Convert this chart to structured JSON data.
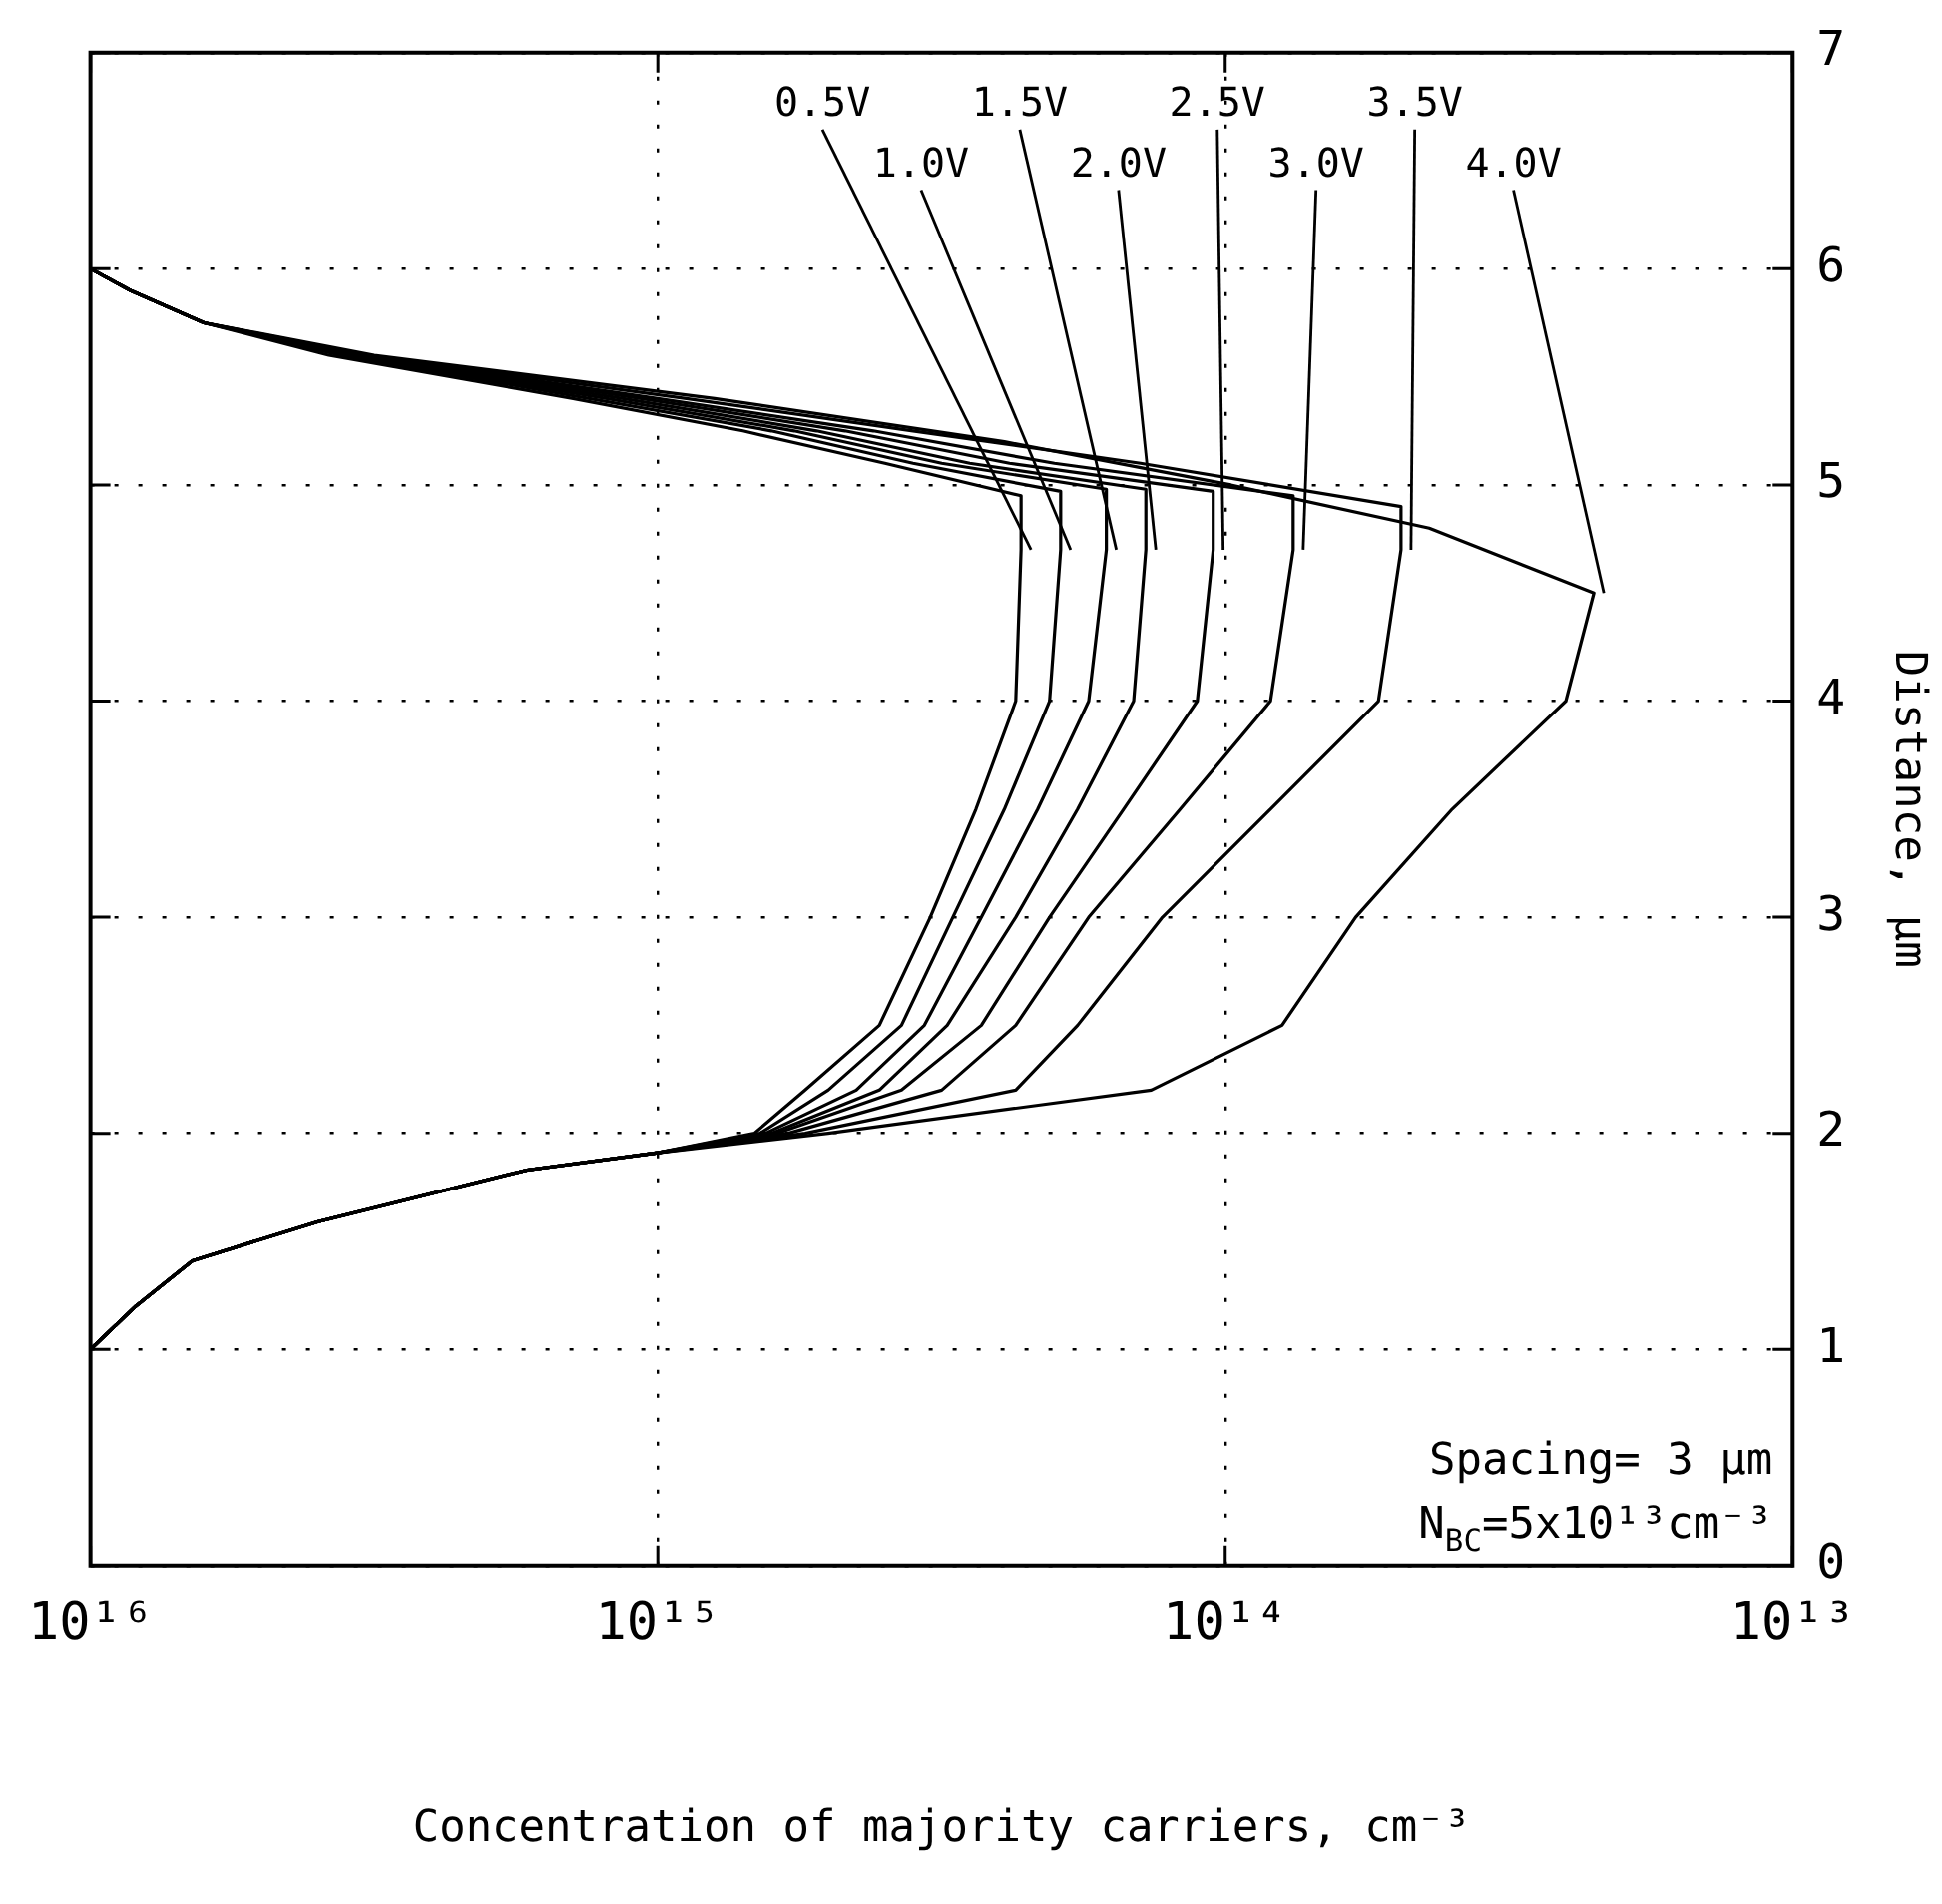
{
  "chart_data": {
    "type": "line",
    "xlabel": "Concentration of majority carriers, cm⁻³",
    "ylabel": "Distance, μm",
    "annotations": [
      "Spacing= 3 μm",
      "N$_{BC}$=5x10¹³cm⁻³"
    ],
    "xlim": [
      1e+16,
      10000000000000.0
    ],
    "xticks": [
      {
        "value": 1e+16,
        "label": "10¹⁶"
      },
      {
        "value": 1000000000000000.0,
        "label": "10¹⁵"
      },
      {
        "value": 100000000000000.0,
        "label": "10¹⁴"
      },
      {
        "value": 10000000000000.0,
        "label": "10¹³"
      }
    ],
    "ylim": [
      0,
      7
    ],
    "yticks": [
      0,
      1,
      2,
      3,
      4,
      5,
      6,
      7
    ],
    "log": "x",
    "grid": true,
    "marker": "none",
    "line_style": "solid",
    "series": [
      {
        "name": "0.5V",
        "color": "#000000",
        "values": [
          1.0,
          1.2,
          1.41,
          1.59,
          1.83,
          1.91,
          2.0,
          2.2,
          2.5,
          3.0,
          3.5,
          4.0,
          4.7,
          4.95,
          5.1,
          5.25,
          5.4,
          5.6,
          5.75,
          5.9,
          6.0
        ],
        "x": [
          1e+16,
          8320000000000000.0,
          6610000000000000.0,
          3980000000000000.0,
          1700000000000000.0,
          1000000000000000.0,
          676000000000000.0,
          550000000000000.0,
          407000000000000.0,
          331000000000000.0,
          275000000000000.0,
          234000000000000.0,
          229000000000000.0,
          229000000000000.0,
          398000000000000.0,
          708000000000000.0,
          1410000000000000.0,
          3800000000000000.0,
          6310000000000000.0,
          8510000000000000.0,
          1e+16
        ]
      },
      {
        "name": "1.0V",
        "color": "#000000",
        "values": [
          1.0,
          1.2,
          1.41,
          1.59,
          1.83,
          1.91,
          2.0,
          2.2,
          2.5,
          3.0,
          3.5,
          4.0,
          4.7,
          4.97,
          5.1,
          5.25,
          5.4,
          5.6,
          5.75,
          5.9,
          6.0
        ],
        "x": [
          1e+16,
          8320000000000000.0,
          6610000000000000.0,
          3980000000000000.0,
          1700000000000000.0,
          1000000000000000.0,
          661000000000000.0,
          501000000000000.0,
          372000000000000.0,
          302000000000000.0,
          245000000000000.0,
          204000000000000.0,
          195000000000000.0,
          195000000000000.0,
          355000000000000.0,
          631000000000000.0,
          1320000000000000.0,
          3630000000000000.0,
          6310000000000000.0,
          8510000000000000.0,
          1e+16
        ]
      },
      {
        "name": "1.5V",
        "color": "#000000",
        "values": [
          1.0,
          1.2,
          1.41,
          1.59,
          1.83,
          1.91,
          2.0,
          2.2,
          2.5,
          3.0,
          3.5,
          4.0,
          4.7,
          4.98,
          5.1,
          5.25,
          5.4,
          5.6,
          5.75,
          5.9,
          6.0
        ],
        "x": [
          1e+16,
          8320000000000000.0,
          6610000000000000.0,
          3980000000000000.0,
          1700000000000000.0,
          1000000000000000.0,
          646000000000000.0,
          447000000000000.0,
          339000000000000.0,
          269000000000000.0,
          214000000000000.0,
          174000000000000.0,
          162000000000000.0,
          162000000000000.0,
          316000000000000.0,
          575000000000000.0,
          1230000000000000.0,
          3550000000000000.0,
          6310000000000000.0,
          8510000000000000.0,
          1e+16
        ]
      },
      {
        "name": "2.0V",
        "color": "#000000",
        "values": [
          1.0,
          1.2,
          1.41,
          1.59,
          1.83,
          1.91,
          2.0,
          2.2,
          2.5,
          3.0,
          3.5,
          4.0,
          4.7,
          4.98,
          5.1,
          5.25,
          5.4,
          5.6,
          5.75,
          5.9,
          6.0
        ],
        "x": [
          1e+16,
          8320000000000000.0,
          6610000000000000.0,
          3980000000000000.0,
          1700000000000000.0,
          1000000000000000.0,
          631000000000000.0,
          407000000000000.0,
          309000000000000.0,
          234000000000000.0,
          182000000000000.0,
          145000000000000.0,
          138000000000000.0,
          138000000000000.0,
          282000000000000.0,
          525000000000000.0,
          1150000000000000.0,
          3470000000000000.0,
          6310000000000000.0,
          8510000000000000.0,
          1e+16
        ]
      },
      {
        "name": "2.5V",
        "color": "#000000",
        "values": [
          1.0,
          1.2,
          1.41,
          1.59,
          1.83,
          1.91,
          2.0,
          2.2,
          2.5,
          3.0,
          3.5,
          4.0,
          4.7,
          4.97,
          5.1,
          5.25,
          5.4,
          5.6,
          5.75,
          5.9,
          6.0
        ],
        "x": [
          1e+16,
          8320000000000000.0,
          6610000000000000.0,
          3980000000000000.0,
          1700000000000000.0,
          1000000000000000.0,
          617000000000000.0,
          372000000000000.0,
          269000000000000.0,
          204000000000000.0,
          151000000000000.0,
          112000000000000.0,
          105000000000000.0,
          105000000000000.0,
          240000000000000.0,
          468000000000000.0,
          1070000000000000.0,
          3390000000000000.0,
          6310000000000000.0,
          8510000000000000.0,
          1e+16
        ]
      },
      {
        "name": "3.0V",
        "color": "#000000",
        "values": [
          1.0,
          1.2,
          1.41,
          1.59,
          1.83,
          1.91,
          2.0,
          2.2,
          2.5,
          3.0,
          3.5,
          4.0,
          4.7,
          4.95,
          5.1,
          5.25,
          5.4,
          5.6,
          5.75,
          5.9,
          6.0
        ],
        "x": [
          1e+16,
          8320000000000000.0,
          6610000000000000.0,
          3980000000000000.0,
          1700000000000000.0,
          1000000000000000.0,
          589000000000000.0,
          316000000000000.0,
          234000000000000.0,
          174000000000000.0,
          120000000000000.0,
          83200000000000.0,
          75900000000000.0,
          75900000000000.0,
          200000000000000.0,
          417000000000000.0,
          1000000000000000.0,
          3310000000000000.0,
          6310000000000000.0,
          8510000000000000.0,
          1e+16
        ]
      },
      {
        "name": "3.5V",
        "color": "#000000",
        "values": [
          1.0,
          1.2,
          1.41,
          1.59,
          1.83,
          1.91,
          2.0,
          2.2,
          2.5,
          3.0,
          3.5,
          4.0,
          4.7,
          4.9,
          5.1,
          5.25,
          5.4,
          5.6,
          5.75,
          5.9,
          6.0
        ],
        "x": [
          1e+16,
          8320000000000000.0,
          6610000000000000.0,
          3980000000000000.0,
          1700000000000000.0,
          1000000000000000.0,
          550000000000000.0,
          234000000000000.0,
          182000000000000.0,
          129000000000000.0,
          83200000000000.0,
          53700000000000.0,
          49000000000000.0,
          49000000000000.0,
          141000000000000.0,
          355000000000000.0,
          891000000000000.0,
          3240000000000000.0,
          6310000000000000.0,
          8510000000000000.0,
          1e+16
        ]
      },
      {
        "name": "4.0V",
        "color": "#000000",
        "values": [
          1.0,
          1.2,
          1.41,
          1.59,
          1.83,
          1.91,
          2.0,
          2.2,
          2.5,
          3.0,
          3.5,
          4.0,
          4.5,
          4.8,
          5.0,
          5.2,
          5.4,
          5.6,
          5.75,
          5.9,
          6.0
        ],
        "x": [
          1e+16,
          8320000000000000.0,
          6610000000000000.0,
          3980000000000000.0,
          1700000000000000.0,
          1000000000000000.0,
          501000000000000.0,
          135000000000000.0,
          79400000000000.0,
          58900000000000.0,
          39800000000000.0,
          25100000000000.0,
          22400000000000.0,
          43700000000000.0,
          97700000000000.0,
          245000000000000.0,
          794000000000000.0,
          3160000000000000.0,
          6310000000000000.0,
          8510000000000000.0,
          1e+16
        ]
      }
    ]
  }
}
